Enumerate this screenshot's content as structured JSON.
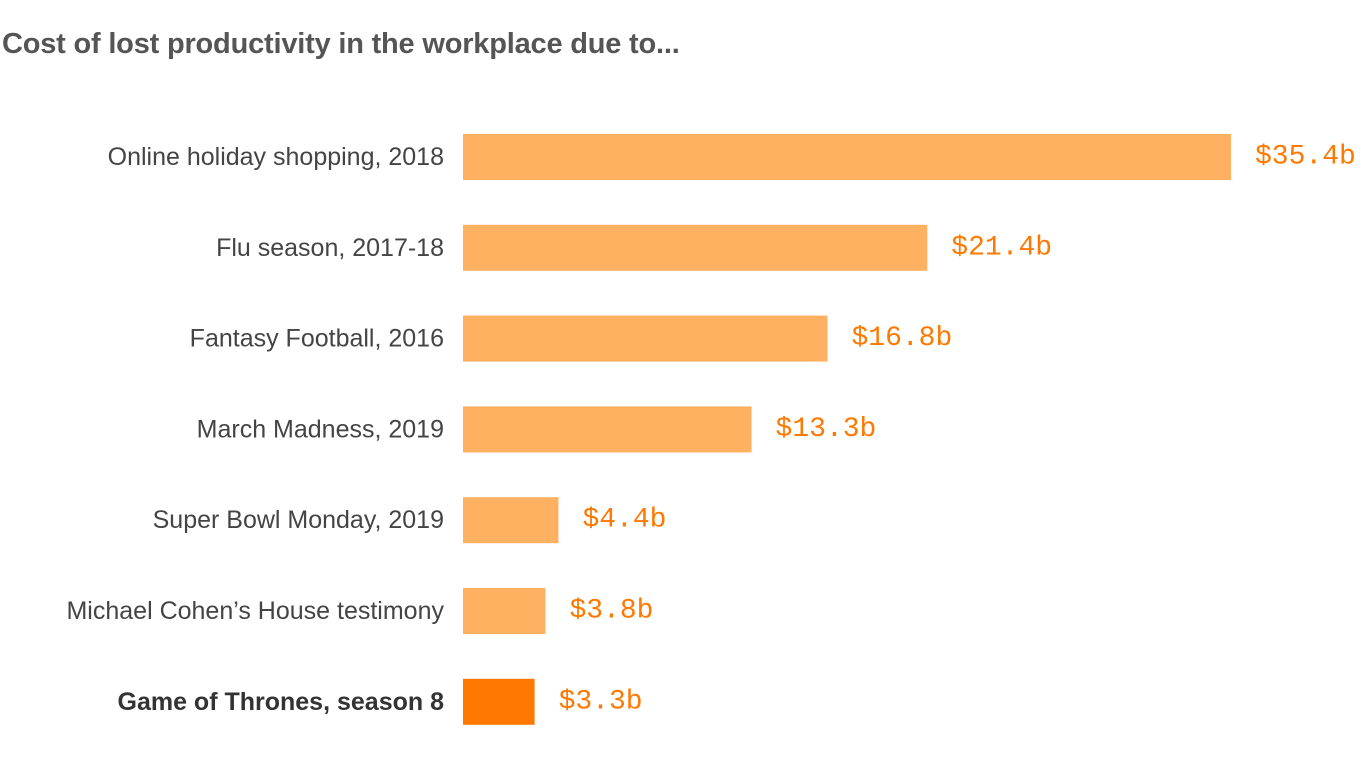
{
  "chart_data": {
    "type": "bar",
    "orientation": "horizontal",
    "title": "Cost of lost productivity in the workplace due to...",
    "xlabel": "",
    "ylabel": "",
    "unit": "billions USD",
    "xlim": [
      0,
      35.4
    ],
    "grid": false,
    "legend": "none",
    "categories": [
      "Online holiday shopping, 2018",
      "Flu season, 2017-18",
      "Fantasy Football, 2016",
      "March Madness, 2019",
      "Super Bowl Monday, 2019",
      "Michael Cohen’s House testimony",
      "Game of Thrones, season 8"
    ],
    "values": [
      35.4,
      21.4,
      16.8,
      13.3,
      4.4,
      3.8,
      3.3
    ],
    "value_labels": [
      "$35.4b",
      "$21.4b",
      "$16.8b",
      "$13.3b",
      "$4.4b",
      "$3.8b",
      "$3.3b"
    ],
    "highlighted_category": "Game of Thrones, season 8",
    "colors": {
      "bar": "#ffb060",
      "bar_highlight": "#ff7800",
      "value_label": "#ff7800"
    }
  }
}
